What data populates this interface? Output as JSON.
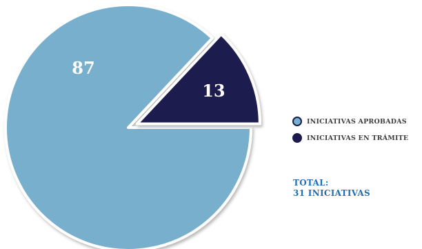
{
  "chart_data": {
    "type": "pie",
    "slices": [
      {
        "label": "INICIATIVAS APROBADAS",
        "value": 87,
        "color": "#78afcc"
      },
      {
        "label": "INICIATIVAS EN TRÁMITE",
        "value": 13,
        "color": "#1b1b4f"
      }
    ],
    "legend_position": "right"
  },
  "total": {
    "label": "TOTAL:",
    "value": "31 INICIATIVAS"
  }
}
